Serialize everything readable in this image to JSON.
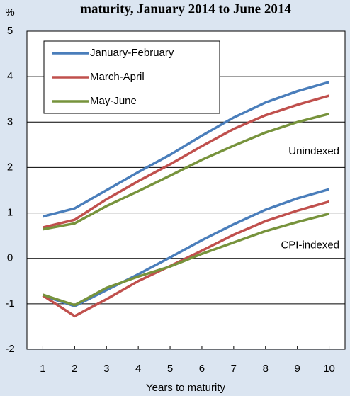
{
  "chart_data": {
    "type": "line",
    "title": "maturity, January 2014 to June 2014",
    "y_unit": "%",
    "x_label": "Years to maturity",
    "x": [
      1,
      2,
      3,
      4,
      5,
      6,
      7,
      8,
      9,
      10
    ],
    "xlim": [
      0.5,
      10.5
    ],
    "xticks": [
      1,
      2,
      3,
      4,
      5,
      6,
      7,
      8,
      9,
      10
    ],
    "ylim": [
      -2,
      5
    ],
    "yticks": [
      -2,
      -1,
      0,
      1,
      2,
      3,
      4,
      5
    ],
    "grid": true,
    "legend": "upper left",
    "annotations": [
      "Unindexed",
      "CPI-indexed"
    ],
    "series": [
      {
        "name": "January-February",
        "color": "#4a7ebb",
        "values": [
          0.92,
          1.1,
          1.5,
          1.9,
          2.28,
          2.7,
          3.1,
          3.43,
          3.68,
          3.88
        ],
        "cpi_indexed_values": [
          -0.82,
          -1.05,
          -0.7,
          -0.35,
          0.02,
          0.4,
          0.75,
          1.07,
          1.32,
          1.52
        ]
      },
      {
        "name": "March-April",
        "color": "#c0504d",
        "values": [
          0.68,
          0.85,
          1.3,
          1.7,
          2.07,
          2.47,
          2.85,
          3.15,
          3.38,
          3.58
        ],
        "cpi_indexed_values": [
          -0.82,
          -1.27,
          -0.9,
          -0.5,
          -0.17,
          0.17,
          0.52,
          0.82,
          1.05,
          1.25
        ]
      },
      {
        "name": "May-June",
        "color": "#77933c",
        "values": [
          0.64,
          0.77,
          1.15,
          1.48,
          1.82,
          2.17,
          2.48,
          2.77,
          3.0,
          3.18
        ],
        "cpi_indexed_values": [
          -0.8,
          -1.03,
          -0.65,
          -0.4,
          -0.18,
          0.1,
          0.35,
          0.6,
          0.8,
          0.98
        ]
      }
    ]
  }
}
